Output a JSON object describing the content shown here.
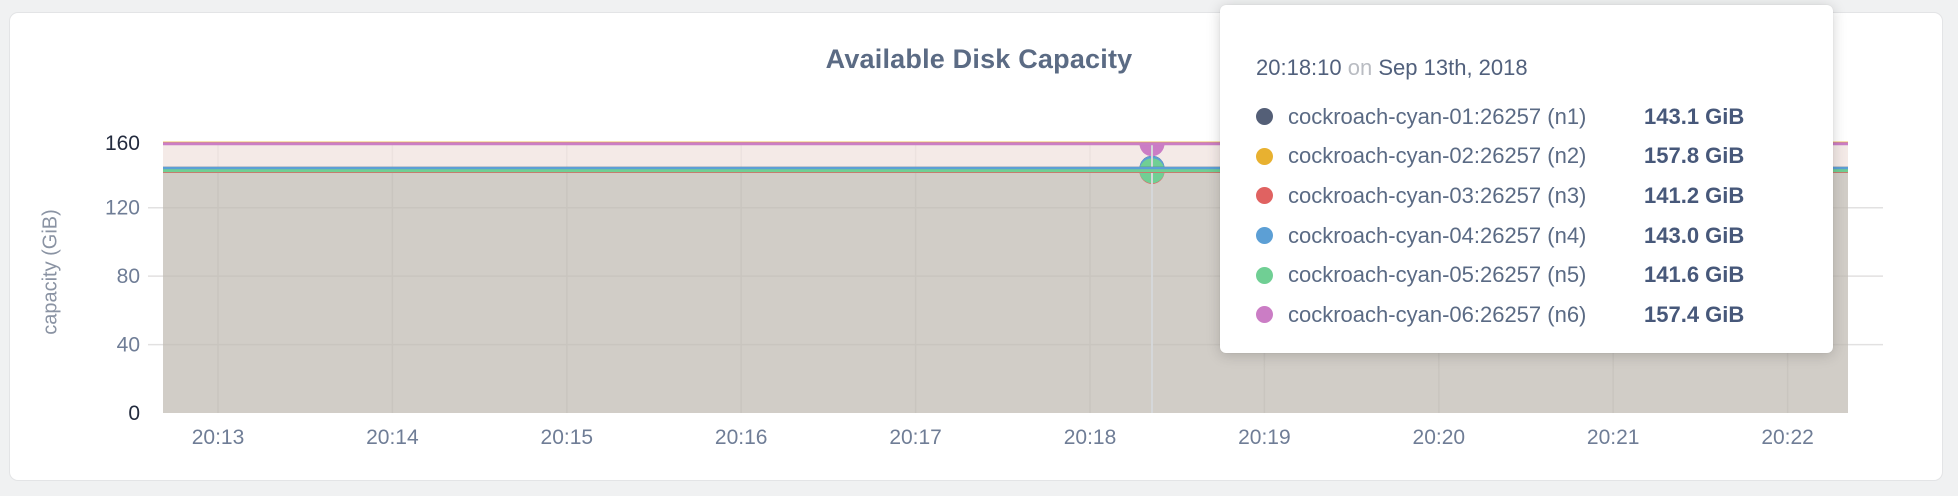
{
  "page": {
    "background": "#f0f1f2"
  },
  "card": {
    "background": "#ffffff",
    "border_color": "#e3e4e6"
  },
  "chart_data": {
    "type": "line",
    "title": "Available Disk Capacity",
    "xlabel": "",
    "ylabel": "capacity (GiB)",
    "unit": "GiB",
    "grid": true,
    "legend_position": "tooltip",
    "ylim": [
      0,
      157.84
    ],
    "x_tick_labels": [
      "20:13",
      "20:14",
      "20:15",
      "20:16",
      "20:17",
      "20:18",
      "20:19",
      "20:20",
      "20:21",
      "20:22"
    ],
    "y_axis": {
      "regular_ticks": [
        {
          "label": "40",
          "value": 40
        },
        {
          "label": "80",
          "value": 80
        },
        {
          "label": "120",
          "value": 120
        }
      ],
      "maxmin_ticks": [
        {
          "label": "0",
          "value": 0
        },
        {
          "label": "160",
          "value": 157.84
        }
      ]
    },
    "series": [
      {
        "name": "cockroach-cyan-01:26257 (n1)",
        "node": "n1",
        "value_gib": 143.1,
        "value_label": "143.1 GiB",
        "color": "#545f77"
      },
      {
        "name": "cockroach-cyan-02:26257 (n2)",
        "node": "n2",
        "value_gib": 157.8,
        "value_label": "157.8 GiB",
        "color": "#e8b130"
      },
      {
        "name": "cockroach-cyan-03:26257 (n3)",
        "node": "n3",
        "value_gib": 141.2,
        "value_label": "141.2 GiB",
        "color": "#e06261"
      },
      {
        "name": "cockroach-cyan-04:26257 (n4)",
        "node": "n4",
        "value_gib": 143.0,
        "value_label": "143.0 GiB",
        "color": "#5c9fd5"
      },
      {
        "name": "cockroach-cyan-05:26257 (n5)",
        "node": "n5",
        "value_gib": 141.6,
        "value_label": "141.6 GiB",
        "color": "#70cf94"
      },
      {
        "name": "cockroach-cyan-06:26257 (n6)",
        "node": "n6",
        "value_gib": 157.4,
        "value_label": "157.4 GiB",
        "color": "#cb7dc5"
      }
    ],
    "area_bands": [
      {
        "from_gib": 157.4,
        "to_gib": 143.1,
        "color": "rgba(240,226,222,0.72)"
      },
      {
        "from_gib": 143.1,
        "to_gib": 0,
        "color": "rgba(191,186,177,0.72)"
      }
    ]
  },
  "tooltip": {
    "time": "20:18:10",
    "conjunction": "on",
    "date": "Sep 13th, 2018"
  },
  "colors": {
    "title": "#5b6b84",
    "tick": "#6f7d96",
    "tick_maxmin": "#232b3e",
    "axis_label": "#8a93a3",
    "gridline": "#e2e1e1",
    "hover_guideline": "#d5d7d9",
    "tooltip_time": "#51607c",
    "tooltip_conjunction": "#b9bcc2",
    "tooltip_series_name": "#5a6a84",
    "tooltip_series_value": "#47587a"
  }
}
